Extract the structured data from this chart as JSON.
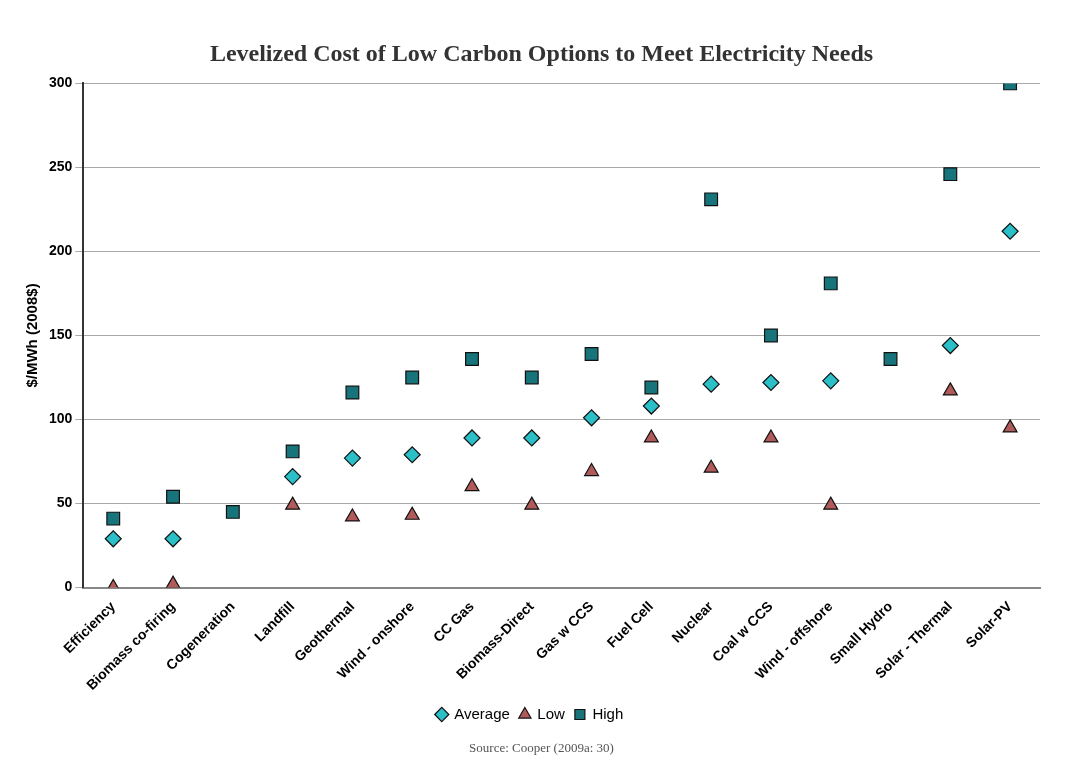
{
  "chart_data": {
    "type": "scatter",
    "title": "Levelized Cost of Low Carbon Options to Meet Electricity Needs",
    "ylabel": "$/MWh (2008$)",
    "categories": [
      "Efficiency",
      "Biomass co-firing",
      "Cogeneration",
      "Landfill",
      "Geothermal",
      "Wind - onshore",
      "CC Gas",
      "Biomass-Direct",
      "Gas w CCS",
      "Fuel Cell",
      "Nuclear",
      "Coal w CCS",
      "Wind - offshore",
      "Small Hydro",
      "Solar - Thermal",
      "Solar-PV"
    ],
    "series": [
      {
        "name": "Average",
        "color": "#2bbfc8",
        "marker": "diamond",
        "values": [
          29,
          29,
          null,
          66,
          77,
          79,
          89,
          89,
          101,
          108,
          121,
          122,
          123,
          null,
          144,
          212
        ]
      },
      {
        "name": "Low",
        "color": "#b05a5a",
        "marker": "triangle",
        "values": [
          0,
          2,
          null,
          49,
          42,
          43,
          60,
          49,
          69,
          89,
          71,
          89,
          49,
          null,
          117,
          95
        ]
      },
      {
        "name": "High",
        "color": "#16747a",
        "marker": "square",
        "values": [
          41,
          54,
          45,
          81,
          116,
          125,
          136,
          125,
          139,
          119,
          231,
          150,
          181,
          136,
          246,
          300
        ]
      }
    ],
    "ylim": [
      0,
      300
    ],
    "yticks": [
      0,
      50,
      100,
      150,
      200,
      250,
      300
    ],
    "grid": "y",
    "legend": "bottom",
    "annotations": [
      "Source: Cooper (2009a: 30)"
    ]
  }
}
